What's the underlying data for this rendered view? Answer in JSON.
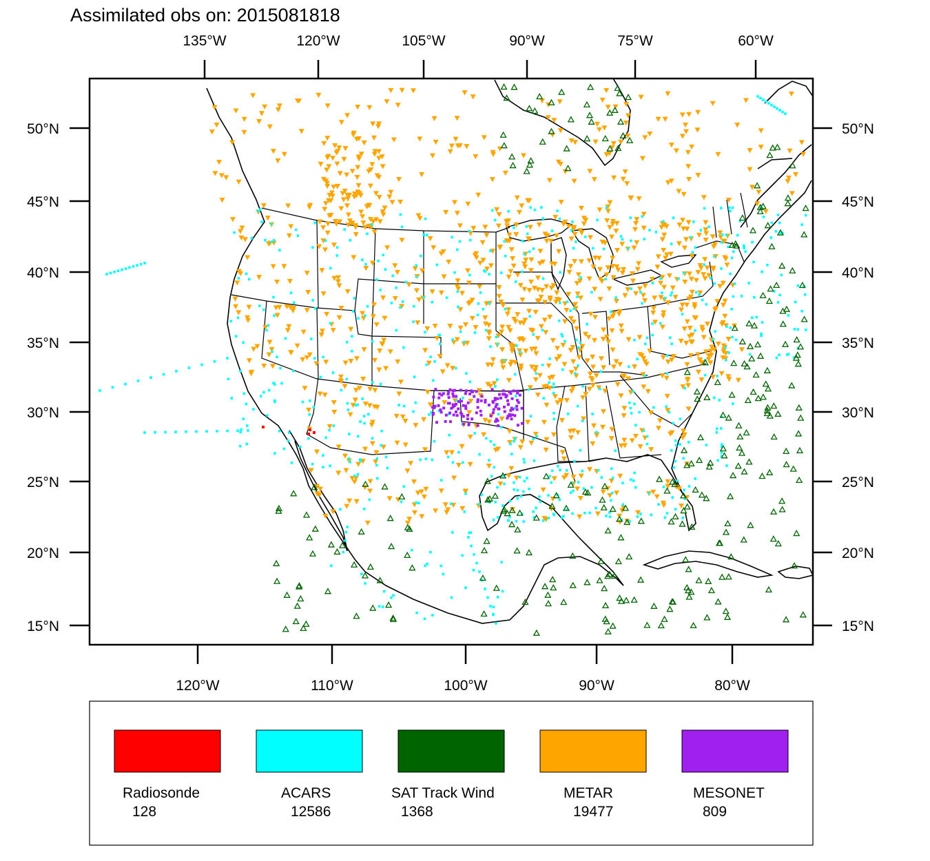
{
  "title": "Assimilated obs on: 2015081818",
  "top_lon_labels": [
    "135°W",
    "120°W",
    "105°W",
    "90°W",
    "75°W",
    "60°W"
  ],
  "bottom_lon_labels": [
    "120°W",
    "110°W",
    "100°W",
    "90°W",
    "80°W"
  ],
  "lat_labels": [
    "50°N",
    "45°N",
    "40°N",
    "35°N",
    "30°N",
    "25°N",
    "20°N",
    "15°N"
  ],
  "legend": [
    {
      "name": "Radiosonde",
      "count": "128",
      "color": "#ff0000"
    },
    {
      "name": "ACARS",
      "count": "12586",
      "color": "#00ffff"
    },
    {
      "name": "SAT Track Wind",
      "count": "1368",
      "color": "#006400"
    },
    {
      "name": "METAR",
      "count": "19477",
      "color": "#ffa500"
    },
    {
      "name": "MESONET",
      "count": "809",
      "color": "#a020f0"
    }
  ],
  "colors": {
    "radiosonde": "#ff0000",
    "acars": "#00ffff",
    "sat_track_wind": "#006400",
    "metar": "#ffa500",
    "mesonet": "#a020f0",
    "boundary": "#000000"
  }
}
